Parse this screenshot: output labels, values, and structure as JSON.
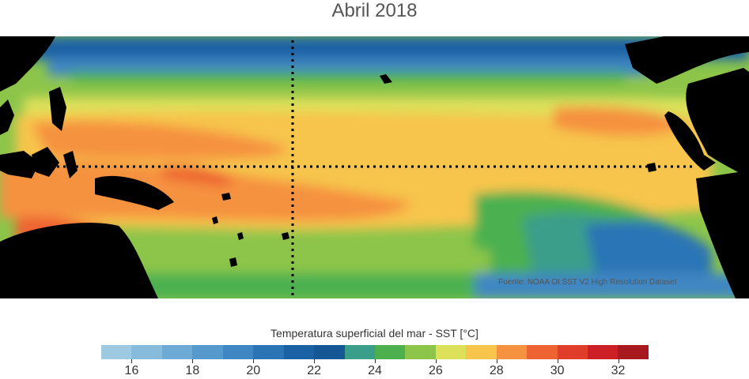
{
  "title": "Abril 2018",
  "source_note": "Fuente: NOAA OI SST V2 High Resolution Dataset",
  "colorbar": {
    "label": "Temperatura superficial del mar - SST  [°C]",
    "min": 15,
    "max": 33,
    "colors": [
      "#9ecae1",
      "#86bbdc",
      "#6daad6",
      "#5699cd",
      "#3f87c2",
      "#2a74b5",
      "#1b62a4",
      "#155694",
      "#3a9e8a",
      "#4cb04f",
      "#8cc54a",
      "#dde15a",
      "#f7c54c",
      "#f59240",
      "#ee6331",
      "#e03d2a",
      "#cc1f26",
      "#a8191f"
    ],
    "tick_values": [
      16,
      18,
      20,
      22,
      24,
      26,
      28,
      30,
      32
    ],
    "tick_labels": [
      "16",
      "18",
      "20",
      "22",
      "24",
      "26",
      "28",
      "30",
      "32"
    ]
  },
  "map": {
    "reference_lines": [
      "equator-line",
      "meridian-line"
    ]
  }
}
